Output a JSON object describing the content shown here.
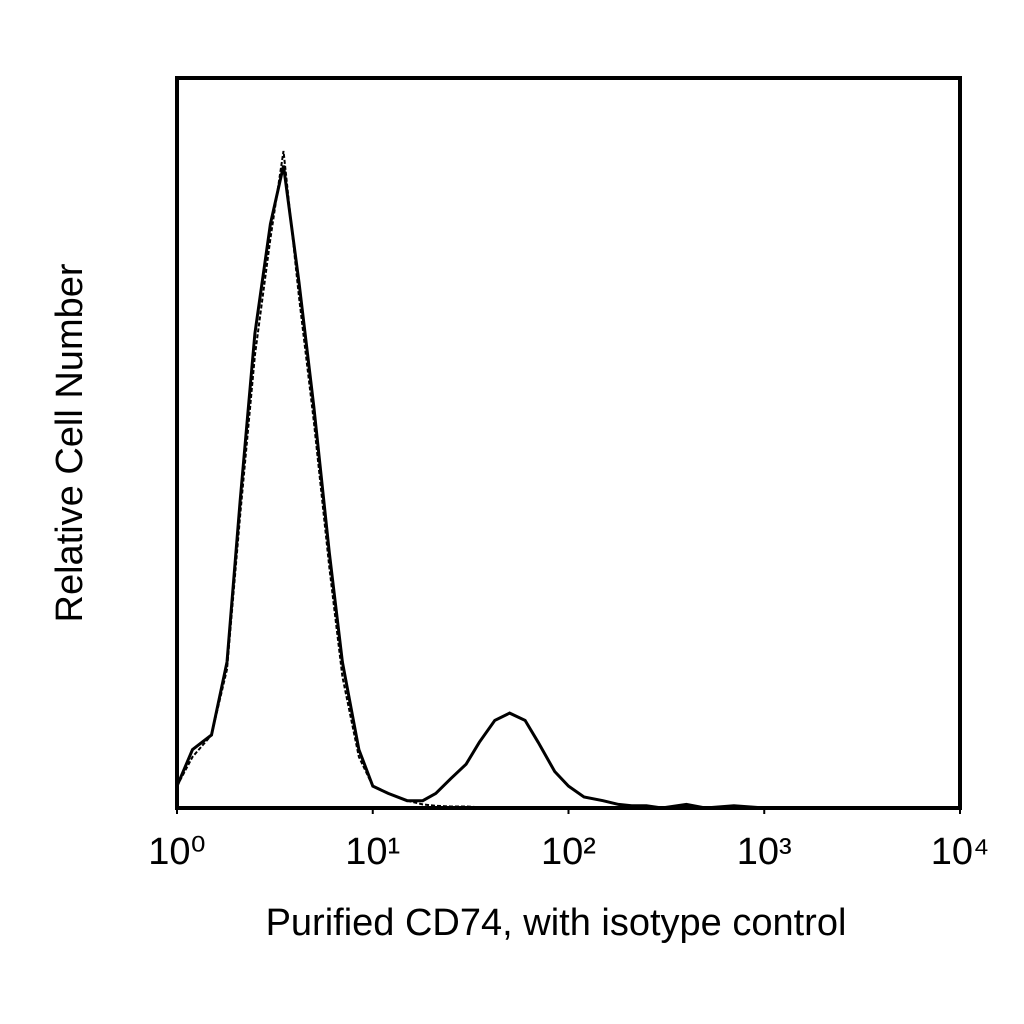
{
  "chart_data": {
    "type": "line",
    "xlabel": "Purified CD74, with isotype control",
    "ylabel": "Relative Cell Number",
    "xscale": "log",
    "x": [
      1,
      1.2,
      1.5,
      1.8,
      2.1,
      2.5,
      3,
      3.5,
      4.2,
      5,
      6,
      7,
      8.5,
      10,
      12,
      15,
      18,
      21,
      25,
      30,
      35,
      42,
      50,
      60,
      70,
      85,
      100,
      120,
      150,
      180,
      210,
      250,
      300,
      400,
      500,
      700,
      1000,
      2000,
      5000,
      10000
    ],
    "series": [
      {
        "color": "#000000",
        "values": [
          3,
          8,
          10,
          20,
          42,
          65,
          80,
          88,
          72,
          55,
          35,
          20,
          8,
          3,
          2,
          1,
          1,
          2,
          4,
          6,
          9,
          12,
          13,
          12,
          9,
          5,
          3,
          1.5,
          1,
          0.5,
          0.3,
          0.3,
          0,
          0.5,
          0,
          0.3,
          0,
          0,
          0,
          0
        ]
      },
      {
        "color": "#000000",
        "values": [
          3,
          7,
          10,
          19,
          40,
          62,
          78,
          90,
          70,
          53,
          33,
          18,
          7,
          3,
          2,
          1,
          0.5,
          0.3,
          0.2,
          0.2,
          0.1,
          0,
          0,
          0,
          0,
          0,
          0,
          0,
          0,
          0,
          0,
          0,
          0,
          0,
          0,
          0,
          0,
          0,
          0,
          0
        ]
      }
    ],
    "xlim": [
      1,
      10000
    ],
    "ylim": [
      0,
      100
    ],
    "xticks": [
      {
        "value": 1,
        "label": "10⁰"
      },
      {
        "value": 10,
        "label": "10¹"
      },
      {
        "value": 100,
        "label": "10²"
      },
      {
        "value": 1000,
        "label": "10³"
      },
      {
        "value": 10000,
        "label": "10⁴"
      }
    ]
  }
}
